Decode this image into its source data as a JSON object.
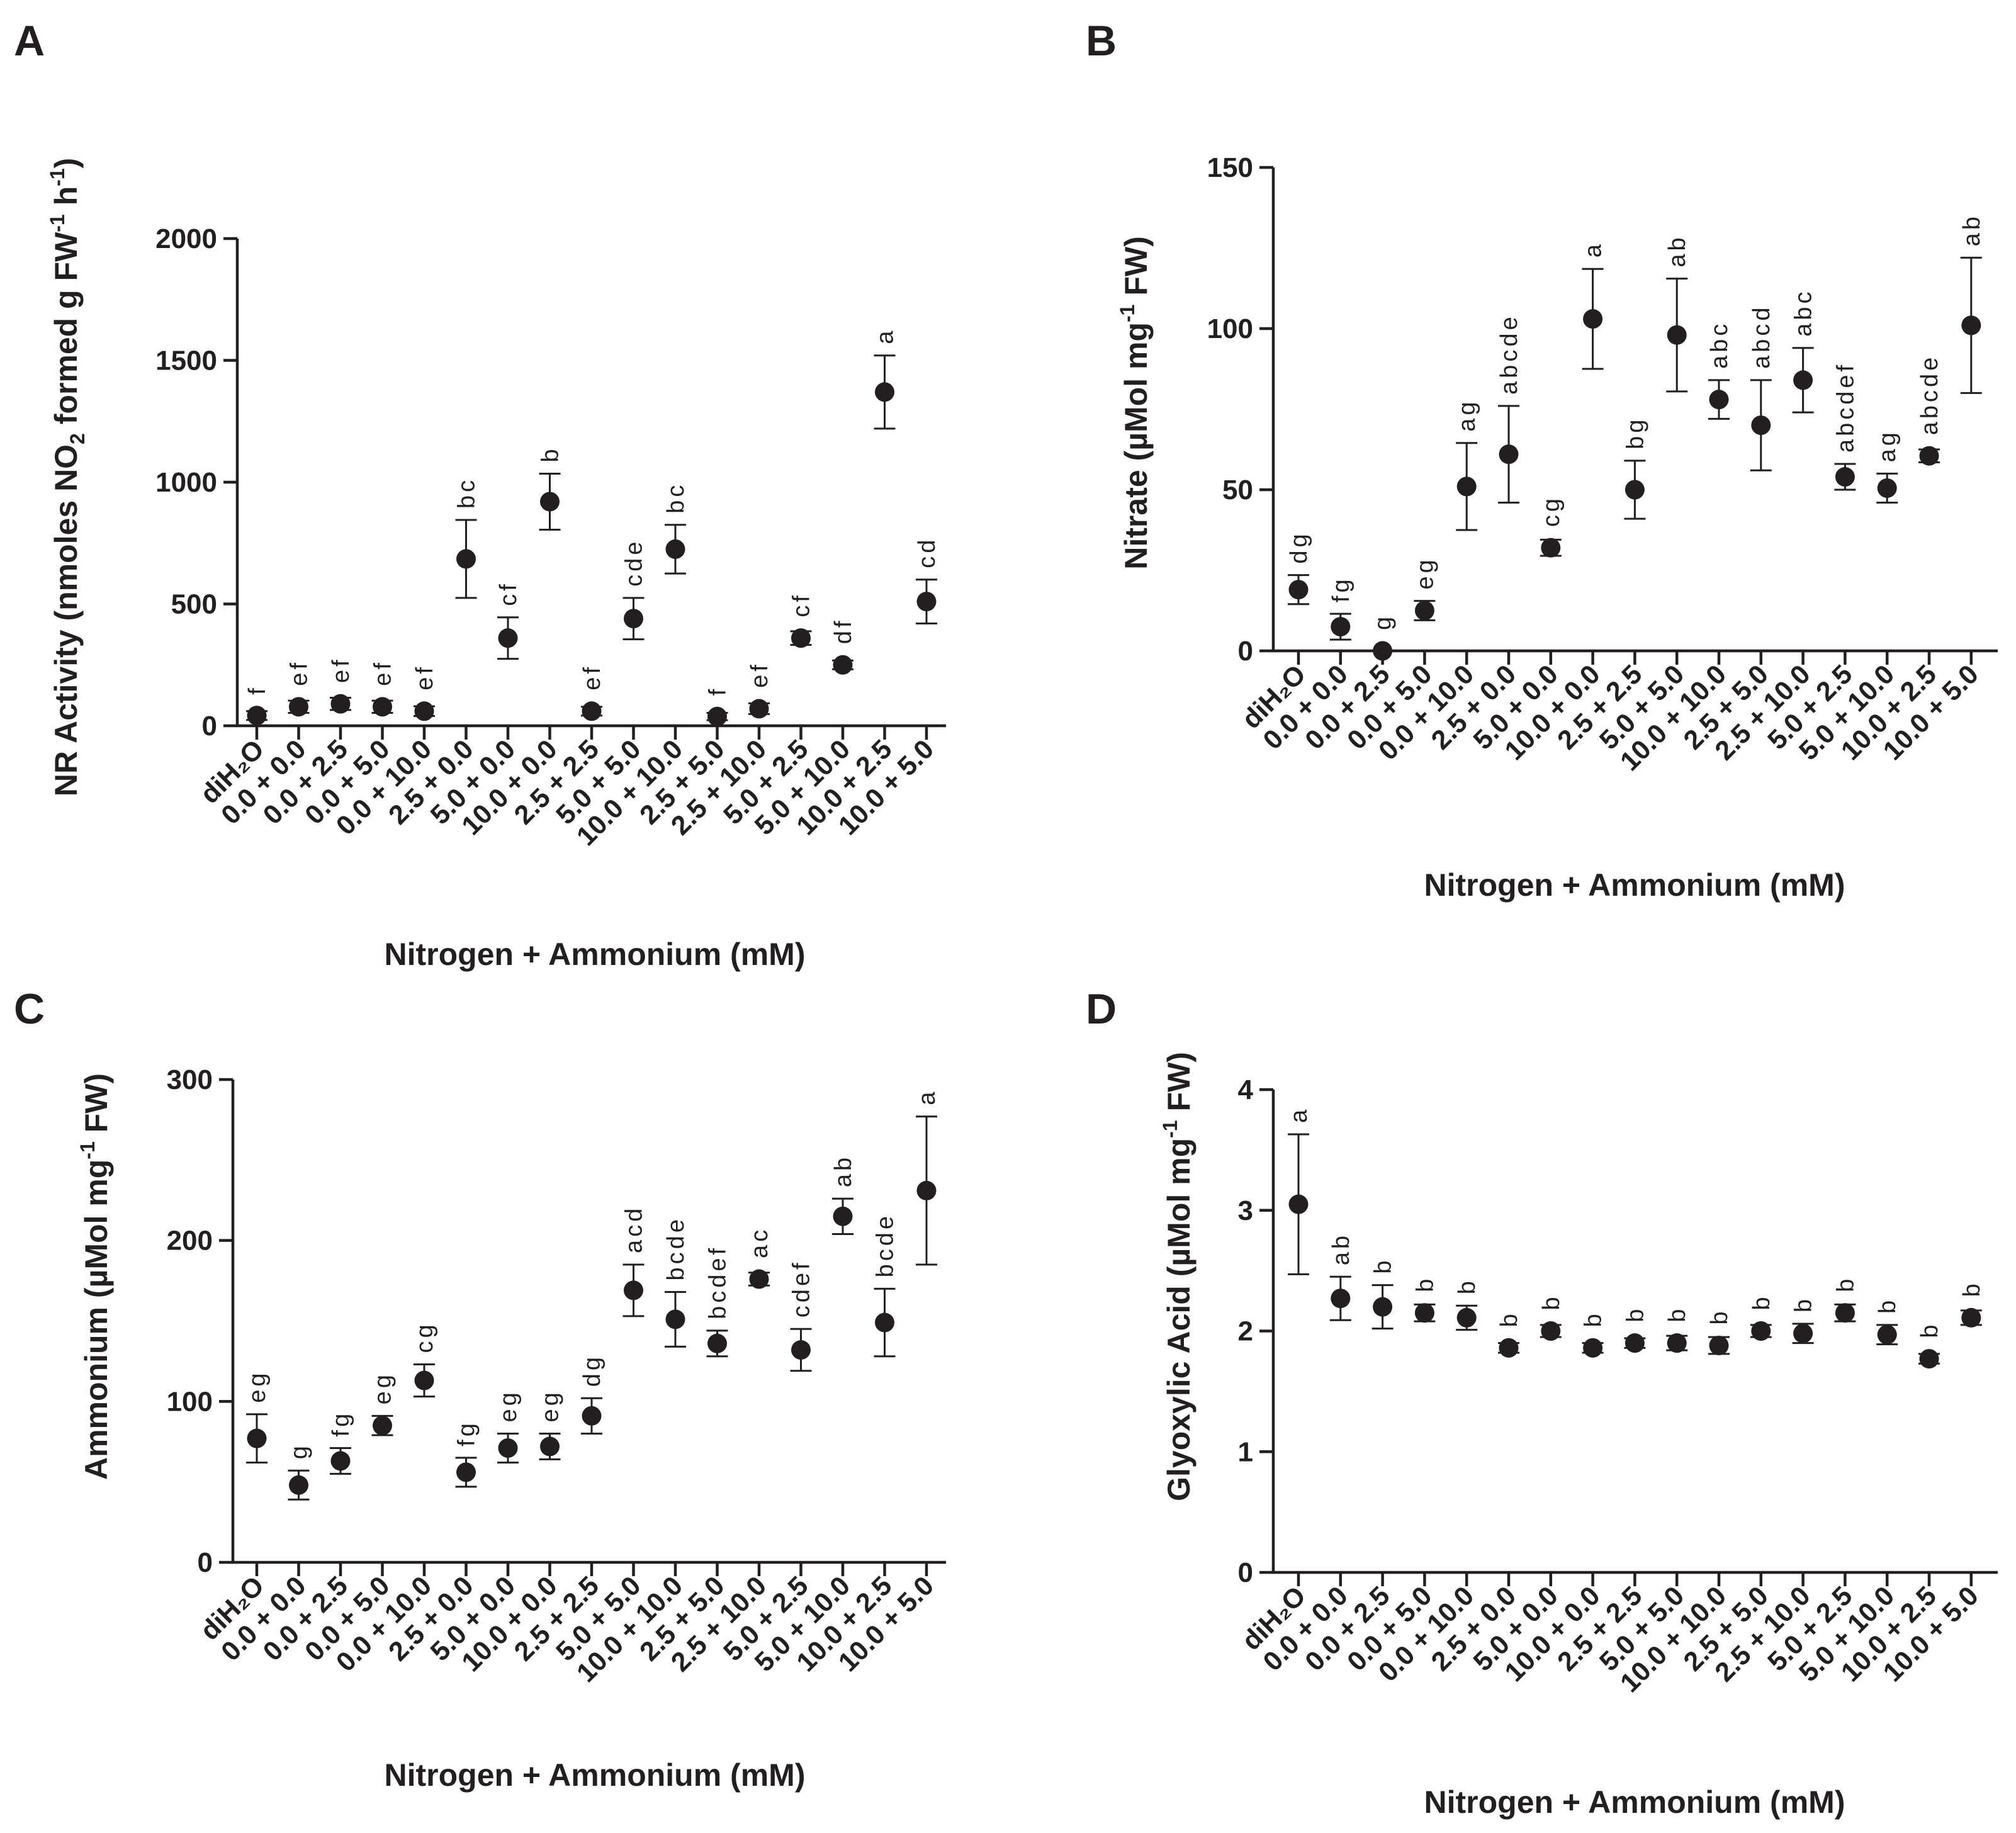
{
  "figure": {
    "ink_color": "#231f20",
    "background": "#ffffff"
  },
  "chart_data": [
    {
      "panel": "A",
      "type": "scatter",
      "title": "",
      "xlabel": "Nitrogen + Ammonium (mM)",
      "ylabel_parts": [
        "NR Activity (nmoles NO",
        "2",
        "  formed g FW",
        "-1",
        " h",
        "-1",
        ")"
      ],
      "ylim": [
        0,
        2000
      ],
      "yticks": [
        0,
        500,
        1000,
        1500,
        2000
      ],
      "ytick_labels": [
        "0",
        "500",
        "1000",
        "1500",
        "2000"
      ],
      "categories": [
        "diH₂O",
        "0.0 + 0.0",
        "0.0 + 2.5",
        "0.0 + 5.0",
        "0.0 + 10.0",
        "2.5 + 0.0",
        "5.0 + 0.0",
        "10.0 + 0.0",
        "2.5 + 2.5",
        "5.0 + 5.0",
        "10.0 + 10.0",
        "2.5 + 5.0",
        "2.5 + 10.0",
        "5.0 + 2.5",
        "5.0 + 10.0",
        "10.0 + 2.5",
        "10.0 + 5.0"
      ],
      "values": [
        42,
        78,
        90,
        78,
        60,
        685,
        360,
        920,
        60,
        440,
        725,
        38,
        70,
        360,
        250,
        1370,
        510
      ],
      "errors": [
        18,
        25,
        25,
        25,
        20,
        160,
        85,
        115,
        18,
        85,
        100,
        15,
        22,
        28,
        18,
        150,
        90
      ],
      "letters": [
        "f",
        "ef",
        "ef",
        "ef",
        "ef",
        "bc",
        "cf",
        "b",
        "ef",
        "cde",
        "bc",
        "f",
        "ef",
        "cf",
        "df",
        "a",
        "cd"
      ]
    },
    {
      "panel": "B",
      "type": "scatter",
      "title": "",
      "xlabel": "Nitrogen + Ammonium (mM)",
      "ylabel_parts": [
        "Nitrate (µMol mg",
        "-1",
        " FW)"
      ],
      "ylim": [
        0,
        150
      ],
      "yticks": [
        0,
        50,
        100,
        150
      ],
      "ytick_labels": [
        "0",
        "50",
        "100",
        "150"
      ],
      "categories": [
        "diH₂O",
        "0.0 + 0.0",
        "0.0 + 2.5",
        "0.0 + 5.0",
        "0.0 + 10.0",
        "2.5 + 0.0",
        "5.0 + 0.0",
        "10.0 + 0.0",
        "2.5 + 2.5",
        "5.0 + 5.0",
        "10.0 + 10.0",
        "2.5 + 5.0",
        "2.5 + 10.0",
        "5.0 + 2.5",
        "5.0 + 10.0",
        "10.0 + 2.5",
        "10.0 + 5.0"
      ],
      "values": [
        19,
        7.5,
        0,
        12.5,
        51,
        61,
        32,
        103,
        50,
        98,
        78,
        70,
        84,
        54,
        50.5,
        60.5,
        101
      ],
      "errors": [
        4.5,
        4,
        0,
        3,
        13.5,
        15,
        2.5,
        15.5,
        9,
        17.5,
        6,
        14,
        10,
        4,
        4.5,
        2,
        21
      ],
      "letters": [
        "dg",
        "fg",
        "g",
        "eg",
        "ag",
        "abcde",
        "cg",
        "a",
        "bg",
        "ab",
        "abc",
        "abcd",
        "abc",
        "abcdef",
        "ag",
        "abcde",
        "ab"
      ]
    },
    {
      "panel": "C",
      "type": "scatter",
      "title": "",
      "xlabel": "Nitrogen + Ammonium (mM)",
      "ylabel_parts": [
        "Ammonium (µMol mg",
        "-1",
        " FW)"
      ],
      "ylim": [
        0,
        300
      ],
      "yticks": [
        0,
        100,
        200,
        300
      ],
      "ytick_labels": [
        "0",
        "100",
        "200",
        "300"
      ],
      "categories": [
        "diH₂O",
        "0.0 + 0.0",
        "0.0 + 2.5",
        "0.0 + 5.0",
        "0.0 + 10.0",
        "2.5 + 0.0",
        "5.0 + 0.0",
        "10.0 + 0.0",
        "2.5 + 2.5",
        "5.0 + 5.0",
        "10.0 + 10.0",
        "2.5 + 5.0",
        "2.5 + 10.0",
        "5.0 + 2.5",
        "5.0 + 10.0",
        "10.0 + 2.5",
        "10.0 + 5.0"
      ],
      "values": [
        77,
        48,
        63,
        85,
        113,
        56,
        71,
        72,
        91,
        169,
        151,
        136,
        176,
        132,
        215,
        149,
        231
      ],
      "errors": [
        15,
        9,
        8,
        6,
        10,
        9,
        9,
        8,
        11,
        16,
        17,
        8,
        4,
        13,
        11,
        21,
        46
      ],
      "letters": [
        "eg",
        "g",
        "fg",
        "eg",
        "cg",
        "fg",
        "eg",
        "eg",
        "dg",
        "acd",
        "bcde",
        "bcdef",
        "ac",
        "cdef",
        "ab",
        "bcde",
        "a"
      ]
    },
    {
      "panel": "D",
      "type": "scatter",
      "title": "",
      "xlabel": "Nitrogen + Ammonium (mM)",
      "ylabel_parts": [
        "Glyoxylic Acid (µMol mg",
        "-1",
        " FW)"
      ],
      "ylim": [
        0,
        4
      ],
      "yticks": [
        0,
        1,
        2,
        3,
        4
      ],
      "ytick_labels": [
        "0",
        "1",
        "2",
        "3",
        "4"
      ],
      "categories": [
        "diH₂O",
        "0.0 + 0.0",
        "0.0 + 2.5",
        "0.0 + 5.0",
        "0.0 + 10.0",
        "2.5 + 0.0",
        "5.0 + 0.0",
        "10.0 + 0.0",
        "2.5 + 2.5",
        "5.0 + 5.0",
        "10.0 + 10.0",
        "2.5 + 5.0",
        "2.5 + 10.0",
        "5.0 + 2.5",
        "5.0 + 10.0",
        "10.0 + 2.5",
        "10.0 + 5.0"
      ],
      "values": [
        3.05,
        2.27,
        2.2,
        2.15,
        2.11,
        1.86,
        2.0,
        1.86,
        1.9,
        1.9,
        1.88,
        2.0,
        1.98,
        2.15,
        1.97,
        1.77,
        2.11
      ],
      "errors": [
        0.58,
        0.18,
        0.18,
        0.07,
        0.1,
        0.04,
        0.05,
        0.04,
        0.04,
        0.06,
        0.07,
        0.05,
        0.08,
        0.07,
        0.08,
        0.04,
        0.06
      ],
      "letters": [
        "a",
        "ab",
        "b",
        "b",
        "b",
        "b",
        "b",
        "b",
        "b",
        "b",
        "b",
        "b",
        "b",
        "b",
        "b",
        "b",
        "b"
      ]
    }
  ]
}
